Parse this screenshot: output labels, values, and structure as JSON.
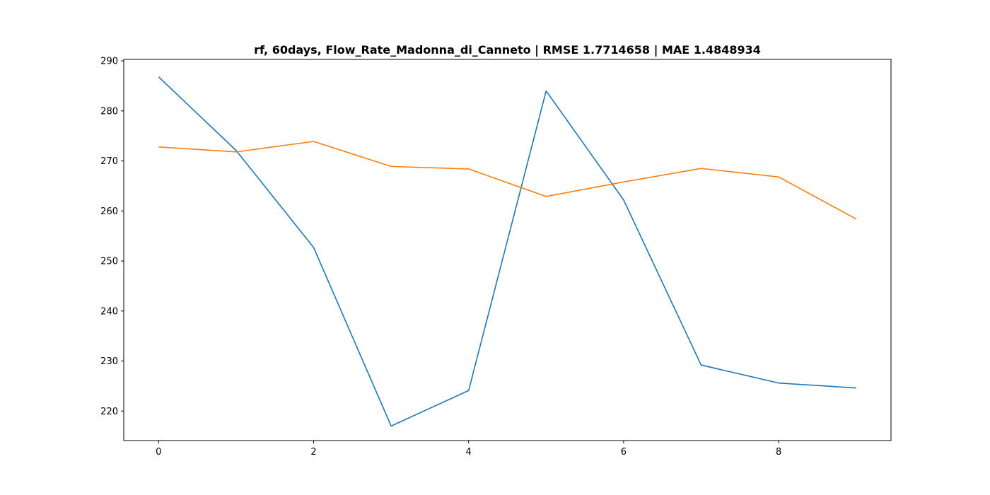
{
  "chart_data": {
    "type": "line",
    "title": "rf, 60days, Flow_Rate_Madonna_di_Canneto | RMSE 1.7714658 | MAE 1.4848934",
    "xlabel": "",
    "ylabel": "",
    "x": [
      0,
      1,
      2,
      3,
      4,
      5,
      6,
      7,
      8,
      9
    ],
    "xlim": [
      -0.45,
      9.45
    ],
    "ylim": [
      214.1,
      290.3
    ],
    "xticks": [
      0,
      2,
      4,
      6,
      8
    ],
    "yticks": [
      220,
      230,
      240,
      250,
      260,
      270,
      280,
      290
    ],
    "grid": false,
    "series": [
      {
        "color": "#1f77b4",
        "values": [
          286.8,
          272.1,
          252.7,
          217.0,
          224.1,
          284.0,
          262.2,
          229.2,
          225.6,
          224.6
        ]
      },
      {
        "color": "#ff7f0e",
        "values": [
          272.8,
          271.8,
          273.9,
          268.9,
          268.4,
          262.9,
          265.8,
          268.5,
          266.8,
          258.4
        ]
      }
    ]
  }
}
